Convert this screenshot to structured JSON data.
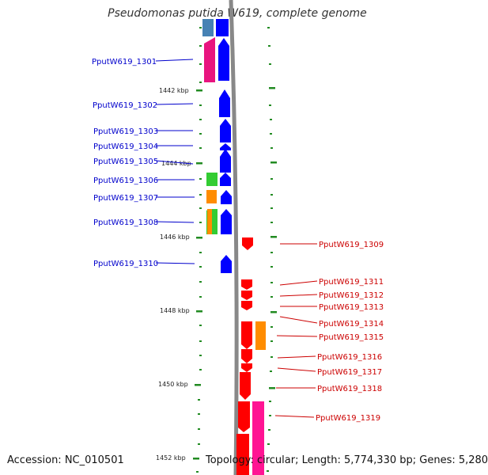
{
  "title": "Pseudomonas putida W619, complete genome",
  "footer": {
    "accession": "Accession: NC_010501",
    "topology": "Topology: circular; Length: 5,774,330 bp; Genes: 5,280"
  },
  "kbp_labels": [
    "1442 kbp",
    "1444 kbp",
    "1446 kbp",
    "1448 kbp",
    "1450 kbp",
    "1452 kbp"
  ],
  "left_genes": [
    "PputW619_1301",
    "PputW619_1302",
    "PputW619_1303",
    "PputW619_1304",
    "PputW619_1305",
    "PputW619_1306",
    "PputW619_1307",
    "PputW619_1308",
    "PputW619_1310"
  ],
  "right_genes": [
    "PputW619_1309",
    "PputW619_1311",
    "PputW619_1312",
    "PputW619_1313",
    "PputW619_1314",
    "PputW619_1315",
    "PputW619_1316",
    "PputW619_1317",
    "PputW619_1318",
    "PputW619_1319"
  ],
  "colors": {
    "forward_strand": "#0000ff",
    "reverse_strand": "#ff0000",
    "tick": "#228b22",
    "backbone": "#888888",
    "magenta": "#e8147f",
    "green": "#33cc33",
    "orange": "#ff8c00",
    "steelblue": "#4682b4"
  }
}
